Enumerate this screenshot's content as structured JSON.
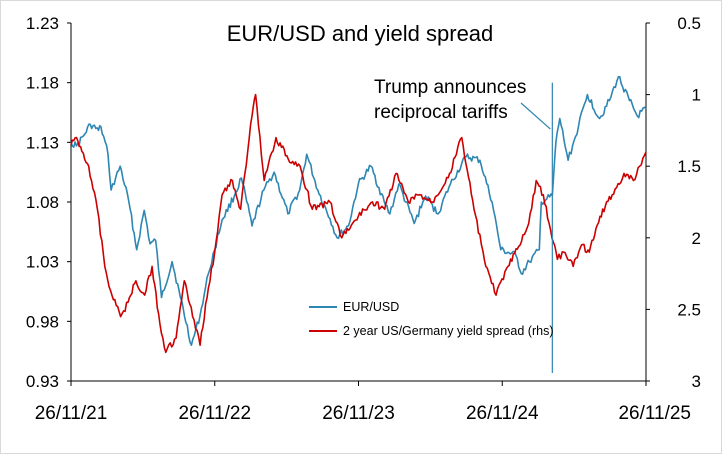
{
  "chart_data": {
    "type": "line",
    "title": "EUR/USD and yield spread",
    "xlabel": "",
    "ylabel": "",
    "x_tick_labels": [
      "26/11/21",
      "26/11/22",
      "26/11/23",
      "26/11/24",
      "26/11/25"
    ],
    "x_range": [
      "2021-11-26",
      "2025-11-26"
    ],
    "y_left": {
      "range": [
        0.93,
        1.23
      ],
      "ticks": [
        "1.23",
        "1.18",
        "1.13",
        "1.08",
        "1.03",
        "0.98",
        "0.93"
      ]
    },
    "y_right": {
      "range": [
        0.5,
        3
      ],
      "inverted": true,
      "ticks": [
        "0.5",
        "1",
        "1.5",
        "2",
        "2.5",
        "3"
      ]
    },
    "grid": false,
    "legend_position": "bottom-center",
    "series": [
      {
        "name": "EUR/USD",
        "axis": "left",
        "color": "#2E86B3",
        "points": [
          [
            "2021-11-26",
            1.13
          ],
          [
            "2021-12-10",
            1.127
          ],
          [
            "2021-12-31",
            1.137
          ],
          [
            "2022-01-14",
            1.145
          ],
          [
            "2022-02-04",
            1.14
          ],
          [
            "2022-02-10",
            1.143
          ],
          [
            "2022-02-28",
            1.12
          ],
          [
            "2022-03-08",
            1.09
          ],
          [
            "2022-03-31",
            1.11
          ],
          [
            "2022-04-22",
            1.08
          ],
          [
            "2022-05-12",
            1.04
          ],
          [
            "2022-05-31",
            1.073
          ],
          [
            "2022-06-15",
            1.045
          ],
          [
            "2022-06-29",
            1.048
          ],
          [
            "2022-07-14",
            1.0
          ],
          [
            "2022-08-10",
            1.03
          ],
          [
            "2022-08-31",
            1.0
          ],
          [
            "2022-09-28",
            0.96
          ],
          [
            "2022-10-20",
            0.985
          ],
          [
            "2022-11-10",
            1.02
          ],
          [
            "2022-11-26",
            1.04
          ],
          [
            "2022-12-15",
            1.065
          ],
          [
            "2023-01-15",
            1.085
          ],
          [
            "2023-02-02",
            1.1
          ],
          [
            "2023-03-01",
            1.06
          ],
          [
            "2023-03-31",
            1.09
          ],
          [
            "2023-04-26",
            1.105
          ],
          [
            "2023-05-31",
            1.07
          ],
          [
            "2023-06-30",
            1.09
          ],
          [
            "2023-07-18",
            1.12
          ],
          [
            "2023-08-15",
            1.09
          ],
          [
            "2023-09-15",
            1.066
          ],
          [
            "2023-10-03",
            1.05
          ],
          [
            "2023-11-01",
            1.06
          ],
          [
            "2023-11-26",
            1.095
          ],
          [
            "2023-12-28",
            1.11
          ],
          [
            "2024-01-31",
            1.08
          ],
          [
            "2024-02-14",
            1.07
          ],
          [
            "2024-03-08",
            1.095
          ],
          [
            "2024-04-16",
            1.062
          ],
          [
            "2024-05-15",
            1.085
          ],
          [
            "2024-06-15",
            1.07
          ],
          [
            "2024-07-17",
            1.095
          ],
          [
            "2024-08-26",
            1.118
          ],
          [
            "2024-09-30",
            1.115
          ],
          [
            "2024-10-31",
            1.08
          ],
          [
            "2024-11-22",
            1.04
          ],
          [
            "2024-12-31",
            1.035
          ],
          [
            "2025-01-13",
            1.02
          ],
          [
            "2025-02-03",
            1.03
          ],
          [
            "2025-02-28",
            1.04
          ],
          [
            "2025-03-05",
            1.08
          ],
          [
            "2025-04-02",
            1.085
          ],
          [
            "2025-04-11",
            1.13
          ],
          [
            "2025-04-21",
            1.15
          ],
          [
            "2025-05-12",
            1.115
          ],
          [
            "2025-05-31",
            1.135
          ],
          [
            "2025-06-30",
            1.17
          ],
          [
            "2025-07-31",
            1.15
          ],
          [
            "2025-08-25",
            1.165
          ],
          [
            "2025-09-17",
            1.185
          ],
          [
            "2025-10-15",
            1.165
          ],
          [
            "2025-11-04",
            1.152
          ],
          [
            "2025-11-26",
            1.158
          ]
        ]
      },
      {
        "name": "2 year US/Germany yield spread (rhs)",
        "axis": "right",
        "color": "#CC0000",
        "points": [
          [
            "2021-11-26",
            1.35
          ],
          [
            "2021-12-10",
            1.3
          ],
          [
            "2022-01-10",
            1.5
          ],
          [
            "2022-02-01",
            1.8
          ],
          [
            "2022-02-20",
            2.2
          ],
          [
            "2022-03-10",
            2.4
          ],
          [
            "2022-04-01",
            2.55
          ],
          [
            "2022-04-20",
            2.45
          ],
          [
            "2022-05-10",
            2.3
          ],
          [
            "2022-06-01",
            2.4
          ],
          [
            "2022-06-20",
            2.2
          ],
          [
            "2022-07-10",
            2.6
          ],
          [
            "2022-07-25",
            2.8
          ],
          [
            "2022-08-20",
            2.7
          ],
          [
            "2022-09-10",
            2.3
          ],
          [
            "2022-10-01",
            2.55
          ],
          [
            "2022-10-20",
            2.75
          ],
          [
            "2022-11-10",
            2.35
          ],
          [
            "2022-11-26",
            2.1
          ],
          [
            "2022-12-15",
            1.7
          ],
          [
            "2023-01-10",
            1.6
          ],
          [
            "2023-01-31",
            1.8
          ],
          [
            "2023-03-01",
            1.15
          ],
          [
            "2023-03-10",
            1.0
          ],
          [
            "2023-04-01",
            1.6
          ],
          [
            "2023-05-01",
            1.3
          ],
          [
            "2023-06-01",
            1.45
          ],
          [
            "2023-07-01",
            1.5
          ],
          [
            "2023-08-01",
            1.8
          ],
          [
            "2023-09-15",
            1.75
          ],
          [
            "2023-10-15",
            2.0
          ],
          [
            "2023-11-26",
            1.85
          ],
          [
            "2024-01-01",
            1.75
          ],
          [
            "2024-02-01",
            1.8
          ],
          [
            "2024-03-01",
            1.55
          ],
          [
            "2024-04-01",
            1.75
          ],
          [
            "2024-05-01",
            1.7
          ],
          [
            "2024-06-01",
            1.75
          ],
          [
            "2024-07-15",
            1.55
          ],
          [
            "2024-08-15",
            1.3
          ],
          [
            "2024-09-15",
            1.8
          ],
          [
            "2024-10-15",
            2.2
          ],
          [
            "2024-11-10",
            2.4
          ],
          [
            "2024-12-10",
            2.2
          ],
          [
            "2025-01-10",
            2.05
          ],
          [
            "2025-02-01",
            1.9
          ],
          [
            "2025-02-20",
            1.6
          ],
          [
            "2025-03-10",
            1.7
          ],
          [
            "2025-04-01",
            2.0
          ],
          [
            "2025-04-15",
            2.15
          ],
          [
            "2025-05-01",
            2.1
          ],
          [
            "2025-05-25",
            2.2
          ],
          [
            "2025-06-15",
            2.05
          ],
          [
            "2025-07-05",
            2.1
          ],
          [
            "2025-08-01",
            1.85
          ],
          [
            "2025-09-01",
            1.7
          ],
          [
            "2025-10-01",
            1.55
          ],
          [
            "2025-10-25",
            1.6
          ],
          [
            "2025-11-10",
            1.5
          ],
          [
            "2025-11-26",
            1.4
          ]
        ]
      }
    ],
    "annotations": [
      {
        "text_lines": [
          "Trump announces",
          "reciprocal tariffs"
        ],
        "date": "2025-04-02",
        "line_range": [
          0.93,
          1.18
        ]
      }
    ],
    "colors": {
      "eurusd": "#2E86B3",
      "spread": "#CC0000",
      "event_line": "#2E86B3",
      "axis": "#000000"
    }
  }
}
